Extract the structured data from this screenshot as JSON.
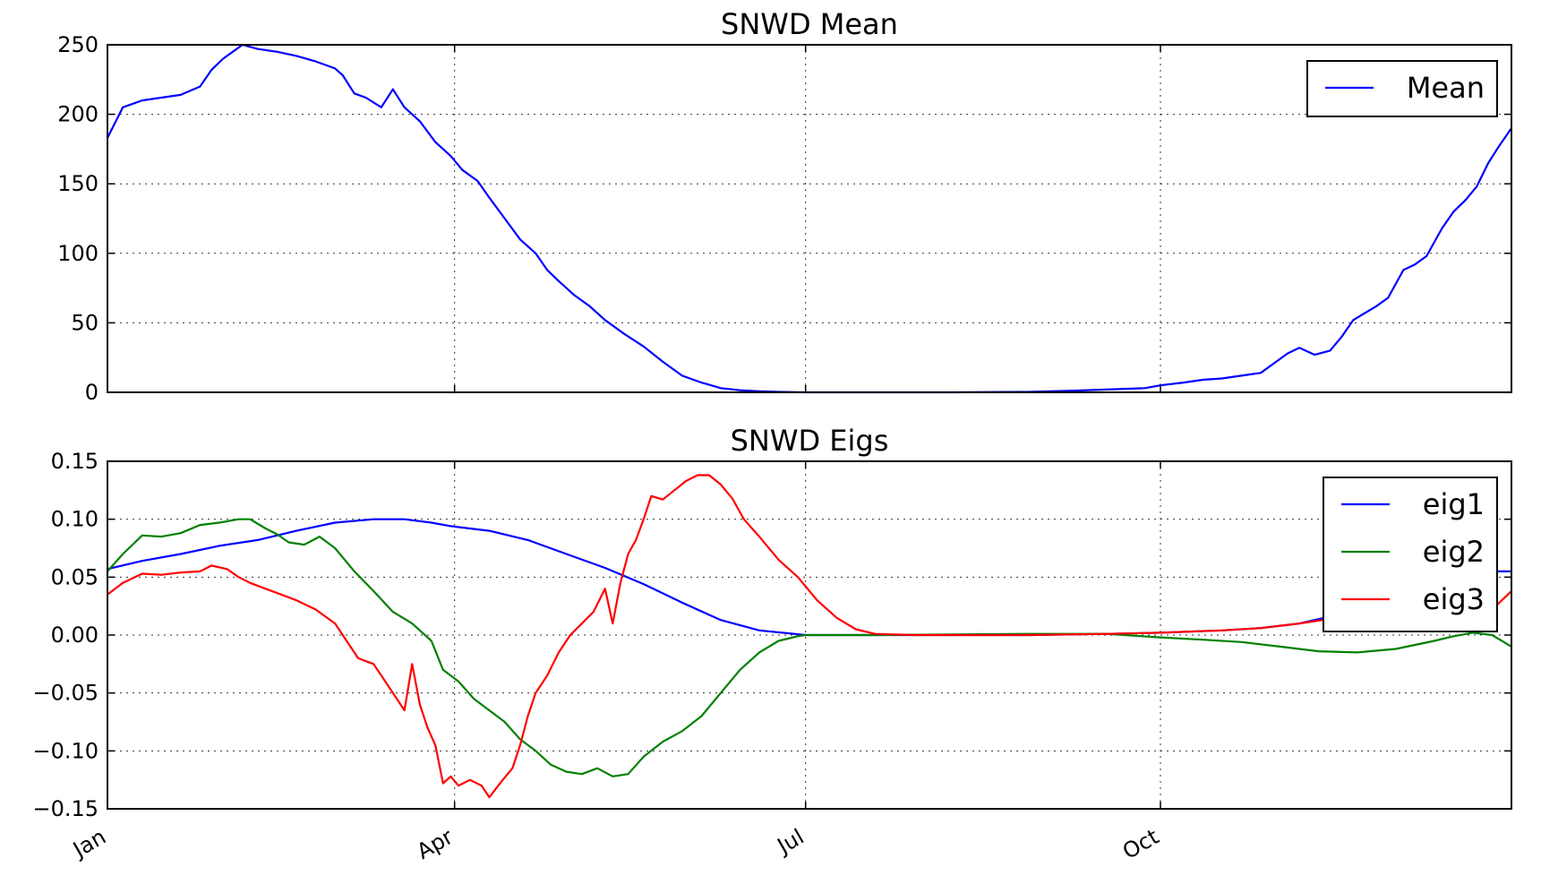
{
  "chart_data": [
    {
      "type": "line",
      "title": "SNWD Mean",
      "xlabel": "",
      "ylabel": "",
      "xlim": [
        1,
        365
      ],
      "ylim": [
        0,
        250
      ],
      "yticks": [
        0,
        50,
        100,
        150,
        200,
        250
      ],
      "ytick_labels": [
        "0",
        "50",
        "100",
        "150",
        "200",
        "250"
      ],
      "xticks": [
        1,
        91,
        182,
        274
      ],
      "xtick_labels": [
        "",
        "",
        "",
        ""
      ],
      "grid": true,
      "legend": "top-right",
      "series": [
        {
          "name": "Mean",
          "color": "#0000ff",
          "points": [
            [
              1,
              183
            ],
            [
              5,
              205
            ],
            [
              10,
              210
            ],
            [
              15,
              212
            ],
            [
              20,
              214
            ],
            [
              25,
              220
            ],
            [
              28,
              232
            ],
            [
              31,
              240
            ],
            [
              34,
              246
            ],
            [
              36,
              250
            ],
            [
              40,
              247
            ],
            [
              45,
              245
            ],
            [
              50,
              242
            ],
            [
              55,
              238
            ],
            [
              60,
              233
            ],
            [
              62,
              228
            ],
            [
              65,
              215
            ],
            [
              68,
              212
            ],
            [
              72,
              205
            ],
            [
              75,
              218
            ],
            [
              78,
              205
            ],
            [
              82,
              195
            ],
            [
              86,
              180
            ],
            [
              90,
              170
            ],
            [
              93,
              160
            ],
            [
              97,
              152
            ],
            [
              100,
              140
            ],
            [
              104,
              125
            ],
            [
              108,
              110
            ],
            [
              112,
              100
            ],
            [
              115,
              88
            ],
            [
              118,
              80
            ],
            [
              122,
              70
            ],
            [
              126,
              62
            ],
            [
              130,
              52
            ],
            [
              135,
              42
            ],
            [
              140,
              33
            ],
            [
              145,
              22
            ],
            [
              150,
              12
            ],
            [
              155,
              7
            ],
            [
              160,
              3
            ],
            [
              165,
              1.5
            ],
            [
              170,
              0.8
            ],
            [
              175,
              0.3
            ],
            [
              182,
              0
            ],
            [
              200,
              0
            ],
            [
              220,
              0
            ],
            [
              240,
              0.3
            ],
            [
              250,
              1
            ],
            [
              260,
              2
            ],
            [
              270,
              3
            ],
            [
              274,
              5
            ],
            [
              280,
              7
            ],
            [
              285,
              9
            ],
            [
              290,
              10
            ],
            [
              295,
              12
            ],
            [
              300,
              14
            ],
            [
              303,
              20
            ],
            [
              307,
              28
            ],
            [
              310,
              32
            ],
            [
              314,
              27
            ],
            [
              318,
              30
            ],
            [
              321,
              40
            ],
            [
              324,
              52
            ],
            [
              327,
              57
            ],
            [
              330,
              62
            ],
            [
              333,
              68
            ],
            [
              337,
              88
            ],
            [
              340,
              92
            ],
            [
              343,
              98
            ],
            [
              347,
              118
            ],
            [
              350,
              130
            ],
            [
              353,
              138
            ],
            [
              356,
              148
            ],
            [
              359,
              165
            ],
            [
              362,
              178
            ],
            [
              365,
              190
            ]
          ]
        }
      ]
    },
    {
      "type": "line",
      "title": "SNWD Eigs",
      "xlabel": "",
      "ylabel": "",
      "xlim": [
        1,
        365
      ],
      "ylim": [
        -0.15,
        0.15
      ],
      "yticks": [
        -0.15,
        -0.1,
        -0.05,
        0.0,
        0.05,
        0.1,
        0.15
      ],
      "ytick_labels": [
        "−0.15",
        "−0.10",
        "−0.05",
        "0.00",
        "0.05",
        "0.10",
        "0.15"
      ],
      "xticks": [
        1,
        91,
        182,
        274
      ],
      "xtick_labels": [
        "Jan",
        "Apr",
        "Jul",
        "Oct"
      ],
      "grid": true,
      "legend": "top-right",
      "series": [
        {
          "name": "eig1",
          "color": "#0000ff",
          "points": [
            [
              1,
              0.057
            ],
            [
              10,
              0.064
            ],
            [
              20,
              0.07
            ],
            [
              30,
              0.077
            ],
            [
              40,
              0.082
            ],
            [
              50,
              0.09
            ],
            [
              60,
              0.097
            ],
            [
              70,
              0.1
            ],
            [
              78,
              0.1
            ],
            [
              85,
              0.097
            ],
            [
              90,
              0.094
            ],
            [
              100,
              0.09
            ],
            [
              110,
              0.082
            ],
            [
              120,
              0.07
            ],
            [
              130,
              0.058
            ],
            [
              140,
              0.044
            ],
            [
              150,
              0.028
            ],
            [
              160,
              0.013
            ],
            [
              170,
              0.004
            ],
            [
              182,
              0
            ],
            [
              200,
              0
            ],
            [
              240,
              0
            ],
            [
              260,
              0.001
            ],
            [
              274,
              0.002
            ],
            [
              290,
              0.004
            ],
            [
              300,
              0.006
            ],
            [
              310,
              0.01
            ],
            [
              318,
              0.016
            ],
            [
              325,
              0.022
            ],
            [
              333,
              0.03
            ],
            [
              340,
              0.04
            ],
            [
              350,
              0.05
            ],
            [
              357,
              0.055
            ],
            [
              365,
              0.055
            ]
          ]
        },
        {
          "name": "eig2",
          "color": "#008000",
          "points": [
            [
              1,
              0.055
            ],
            [
              5,
              0.07
            ],
            [
              10,
              0.086
            ],
            [
              15,
              0.085
            ],
            [
              20,
              0.088
            ],
            [
              25,
              0.095
            ],
            [
              30,
              0.097
            ],
            [
              35,
              0.1
            ],
            [
              38,
              0.1
            ],
            [
              42,
              0.092
            ],
            [
              45,
              0.087
            ],
            [
              48,
              0.08
            ],
            [
              52,
              0.078
            ],
            [
              56,
              0.085
            ],
            [
              60,
              0.075
            ],
            [
              65,
              0.055
            ],
            [
              70,
              0.038
            ],
            [
              75,
              0.02
            ],
            [
              80,
              0.01
            ],
            [
              85,
              -0.005
            ],
            [
              88,
              -0.03
            ],
            [
              92,
              -0.04
            ],
            [
              96,
              -0.055
            ],
            [
              100,
              -0.065
            ],
            [
              104,
              -0.075
            ],
            [
              108,
              -0.09
            ],
            [
              112,
              -0.1
            ],
            [
              116,
              -0.112
            ],
            [
              120,
              -0.118
            ],
            [
              124,
              -0.12
            ],
            [
              128,
              -0.115
            ],
            [
              132,
              -0.122
            ],
            [
              136,
              -0.12
            ],
            [
              140,
              -0.105
            ],
            [
              145,
              -0.092
            ],
            [
              150,
              -0.083
            ],
            [
              155,
              -0.07
            ],
            [
              160,
              -0.05
            ],
            [
              165,
              -0.03
            ],
            [
              170,
              -0.015
            ],
            [
              175,
              -0.005
            ],
            [
              180,
              -0.001
            ],
            [
              182,
              0
            ],
            [
              200,
              0
            ],
            [
              240,
              0.001
            ],
            [
              260,
              0.001
            ],
            [
              274,
              -0.002
            ],
            [
              285,
              -0.004
            ],
            [
              295,
              -0.006
            ],
            [
              305,
              -0.01
            ],
            [
              315,
              -0.014
            ],
            [
              325,
              -0.015
            ],
            [
              335,
              -0.012
            ],
            [
              345,
              -0.005
            ],
            [
              350,
              -0.001
            ],
            [
              355,
              0.002
            ],
            [
              360,
              0.0
            ],
            [
              365,
              -0.01
            ]
          ]
        },
        {
          "name": "eig3",
          "color": "#ff0000",
          "points": [
            [
              1,
              0.035
            ],
            [
              5,
              0.045
            ],
            [
              10,
              0.053
            ],
            [
              15,
              0.052
            ],
            [
              20,
              0.054
            ],
            [
              25,
              0.055
            ],
            [
              28,
              0.06
            ],
            [
              32,
              0.057
            ],
            [
              35,
              0.05
            ],
            [
              38,
              0.045
            ],
            [
              42,
              0.04
            ],
            [
              46,
              0.035
            ],
            [
              50,
              0.03
            ],
            [
              55,
              0.022
            ],
            [
              60,
              0.01
            ],
            [
              63,
              -0.005
            ],
            [
              66,
              -0.02
            ],
            [
              70,
              -0.025
            ],
            [
              73,
              -0.04
            ],
            [
              76,
              -0.055
            ],
            [
              78,
              -0.065
            ],
            [
              80,
              -0.025
            ],
            [
              82,
              -0.06
            ],
            [
              84,
              -0.08
            ],
            [
              86,
              -0.095
            ],
            [
              88,
              -0.128
            ],
            [
              90,
              -0.122
            ],
            [
              92,
              -0.13
            ],
            [
              95,
              -0.125
            ],
            [
              98,
              -0.13
            ],
            [
              100,
              -0.14
            ],
            [
              103,
              -0.127
            ],
            [
              106,
              -0.115
            ],
            [
              108,
              -0.095
            ],
            [
              110,
              -0.07
            ],
            [
              112,
              -0.05
            ],
            [
              115,
              -0.035
            ],
            [
              118,
              -0.015
            ],
            [
              121,
              0.0
            ],
            [
              124,
              0.01
            ],
            [
              127,
              0.02
            ],
            [
              130,
              0.04
            ],
            [
              132,
              0.01
            ],
            [
              134,
              0.045
            ],
            [
              136,
              0.07
            ],
            [
              138,
              0.082
            ],
            [
              140,
              0.1
            ],
            [
              142,
              0.12
            ],
            [
              145,
              0.117
            ],
            [
              148,
              0.125
            ],
            [
              151,
              0.133
            ],
            [
              154,
              0.138
            ],
            [
              157,
              0.138
            ],
            [
              160,
              0.13
            ],
            [
              163,
              0.118
            ],
            [
              166,
              0.1
            ],
            [
              170,
              0.085
            ],
            [
              175,
              0.065
            ],
            [
              180,
              0.05
            ],
            [
              185,
              0.03
            ],
            [
              190,
              0.015
            ],
            [
              195,
              0.005
            ],
            [
              200,
              0.001
            ],
            [
              210,
              0
            ],
            [
              240,
              0
            ],
            [
              260,
              0.001
            ],
            [
              274,
              0.002
            ],
            [
              290,
              0.004
            ],
            [
              300,
              0.006
            ],
            [
              310,
              0.01
            ],
            [
              318,
              0.014
            ],
            [
              325,
              0.02
            ],
            [
              333,
              0.025
            ],
            [
              340,
              0.02
            ],
            [
              345,
              0.018
            ],
            [
              350,
              0.025
            ],
            [
              355,
              0.03
            ],
            [
              360,
              0.022
            ],
            [
              365,
              0.038
            ]
          ]
        }
      ]
    }
  ]
}
